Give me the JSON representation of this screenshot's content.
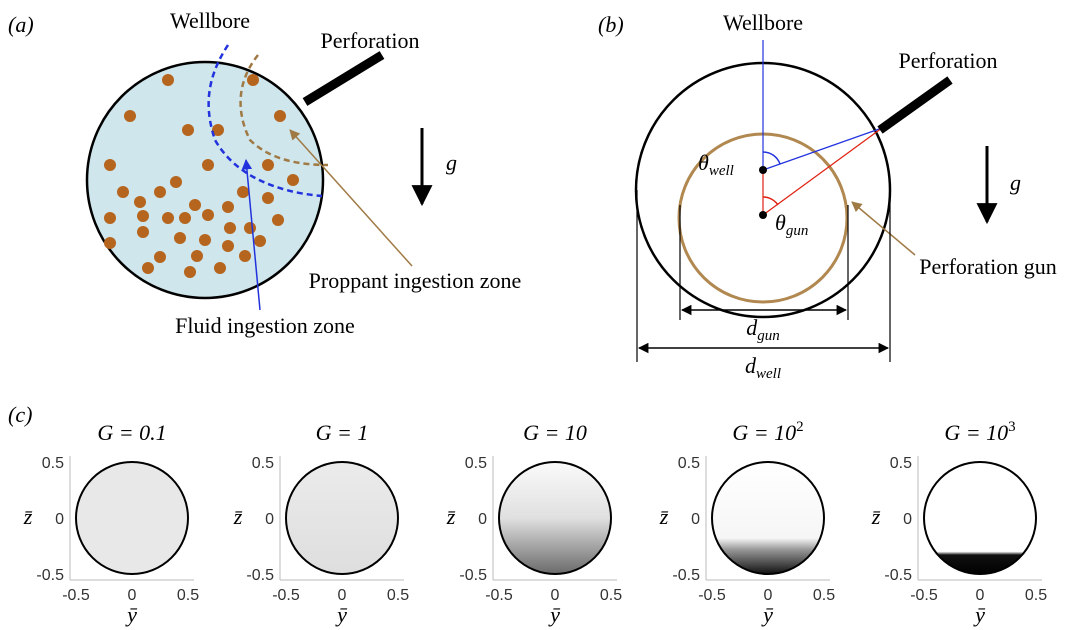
{
  "panel_a": {
    "label": "(a)",
    "wellbore": "Wellbore",
    "perforation": "Perforation",
    "gravity": "g",
    "proppant_zone": "Proppant ingestion zone",
    "fluid_zone": "Fluid ingestion zone"
  },
  "panel_b": {
    "label": "(b)",
    "wellbore": "Wellbore",
    "perforation": "Perforation",
    "gravity": "g",
    "theta_symbol": "θ",
    "theta_well_sub": "well",
    "theta_gun_sub": "gun",
    "d_symbol": "d",
    "d_gun_sub": "gun",
    "d_well_sub": "well",
    "gun_label": "Perforation gun"
  },
  "panel_c": {
    "label": "(c)",
    "xlabel": "ȳ",
    "ylabel": "z̄",
    "xticks": [
      "-0.5",
      "0",
      "0.5"
    ],
    "yticks": [
      "0.5",
      "0",
      "-0.5"
    ],
    "plots": [
      {
        "title": "G = 0.1"
      },
      {
        "title": "G = 1"
      },
      {
        "title": "G = 10"
      },
      {
        "title": "G = 10",
        "exponent": "2"
      },
      {
        "title": "G = 10",
        "exponent": "3"
      }
    ]
  }
}
